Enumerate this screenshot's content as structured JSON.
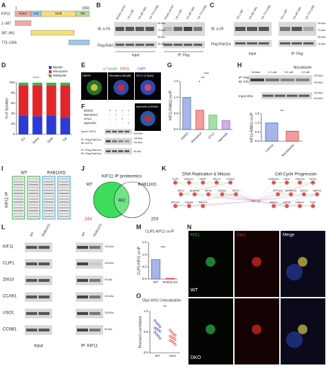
{
  "panel_labels": [
    "A",
    "B",
    "C",
    "D",
    "E",
    "F",
    "G",
    "H",
    "I",
    "J",
    "K",
    "L",
    "M",
    "N",
    "O"
  ],
  "A": {
    "protein": "KIF11",
    "constructs": [
      "1–387",
      "387–861",
      "773–1056"
    ],
    "start": "1",
    "end": "1056",
    "domains": [
      "Motor",
      "Coil",
      "Stalk",
      "Tail"
    ]
  },
  "B": {
    "lanes": [
      "Empty vector",
      "V5-1-387",
      "V5-387-861",
      "V5-773-1056",
      "Empty vector",
      "V5-1-387",
      "V5-387-861",
      "V5-773-1056"
    ],
    "ib": "IB: α-V5",
    "flag": "Flag-Rab11a",
    "input": "Input",
    "ip": "IP: Flag",
    "kda": [
      "95 kDa",
      "72 kDa",
      "55 kDa",
      "26 kDa"
    ]
  },
  "C": {
    "lanes": [
      "V5-1-387",
      "V5-387-861",
      "V5-773-1056",
      "V5-1-387",
      "V5-387-861",
      "V5-773-1056"
    ],
    "ib": "IB: α-V5",
    "flag": "Flag-Rab11a",
    "input": "Input",
    "ip": "IP: Flag",
    "kda": [
      "95 kDa",
      "72 kDa",
      "55 kDa",
      "26 kDa"
    ]
  },
  "E": {
    "stain": [
      "α-Tubulin",
      "KIF11",
      "DAPI"
    ],
    "conditions": [
      "DMSO",
      "Monastrol (50µM)",
      "STLC (2.5µM)",
      "Ispinesib (100nM)"
    ]
  },
  "F": {
    "rows": [
      "DMSO",
      "Monastrol",
      "STLC",
      "Ispinesib"
    ],
    "signs": [
      [
        "+",
        "+",
        "+",
        "+"
      ],
      [
        "-",
        "+",
        "-",
        "-"
      ],
      [
        "-",
        "-",
        "+",
        "-"
      ],
      [
        "-",
        "-",
        "-",
        "+"
      ]
    ],
    "blots": [
      "Input: KIF11",
      "IP: Flag-Rab11a",
      "IB: KIF11",
      "IP: Flag-Rab11a",
      "IB: Flag-Rab11a"
    ],
    "kda": [
      "130 kDa",
      "100 kDa",
      "130 kDa",
      "100 kDa",
      "26 kDa"
    ]
  },
  "H_blot": {
    "treatment": "Nocodazole",
    "doses": [
      "Vehicle",
      "0.1 µM",
      "0.5 µM",
      "1.0 µM"
    ],
    "labels": [
      "IP: Flag-Rab11a",
      "IB: Kif11",
      "Input Kif11"
    ],
    "kda": [
      "130 kDa",
      "100 kDa",
      "130 kDa",
      "100 kDa"
    ]
  },
  "I": {
    "groups": [
      "WT",
      "RAB11KD"
    ],
    "ylabel": "KIF11 IP"
  },
  "J": {
    "title": "KIF11 IP proteomics",
    "sets": [
      "WT",
      "RAB11KD"
    ],
    "only_wt": "244",
    "shared": "482",
    "only_kd": "233"
  },
  "K": {
    "clusters": [
      "DNA Replication & Mitosis",
      "Cell Cycle Progression"
    ],
    "center": "KIF11",
    "left_nodes": [
      "CLIP1",
      "MAD1L1",
      "NASP",
      "HELLS",
      "CCNA1",
      "SMC3",
      "NCAPD2",
      "MLH1",
      "STAG2",
      "RFC2",
      "BRCA2",
      "PDS5A",
      "SMC1A"
    ],
    "right_nodes": [
      "CSNK2A1",
      "USO1",
      "CDK11A",
      "KIF4A",
      "PPP1CA",
      "RPS6KA3",
      "DMXL2",
      "MAPK3",
      "MAPK1",
      "NUP43",
      "GNB2L1",
      "RAN"
    ]
  },
  "L": {
    "groups": [
      "WT",
      "RAB11KO",
      "WT",
      "RAB11KO"
    ],
    "proteins": [
      "KIF11",
      "CLIP1",
      "ZW10",
      "CCAR1",
      "USO1",
      "CCNB1"
    ],
    "kda": [
      "130 kDa",
      "130 kDa",
      "95 kDa",
      "130 kDa",
      "130 kDa",
      "55 kDa"
    ],
    "input": "Input",
    "ip": "IP: KIF11"
  },
  "N": {
    "channels": [
      "Kif11",
      "Clip1",
      "Merge"
    ],
    "rows": [
      "WT",
      "DKO"
    ]
  },
  "chart_data": [
    {
      "type": "stacked",
      "ylabel": "% of Spindles",
      "categories": [
        "EV",
        "Motor",
        "Stalk",
        "Tail"
      ],
      "series": [
        {
          "name": "Bipolar",
          "color": "#2b3bd6",
          "values": [
            37,
            35,
            36,
            33
          ]
        },
        {
          "name": "Monopolar",
          "color": "#e0262a",
          "values": [
            58,
            60,
            58,
            62
          ]
        },
        {
          "name": "Multipolar",
          "color": "#3db34a",
          "values": [
            5,
            5,
            6,
            5
          ]
        }
      ],
      "ylim": [
        0,
        100
      ],
      "yticks": [
        0,
        20,
        40,
        60,
        80,
        100
      ],
      "annotations": [
        "****",
        "*"
      ]
    },
    {
      "type": "bar",
      "ylabel": "KIF11-RAB11 co-IP",
      "categories": [
        "DMSO",
        "Monastrol",
        "STLC",
        "Ispinesib"
      ],
      "values": [
        1.0,
        0.6,
        0.45,
        0.28
      ],
      "colors": [
        "#3c5ec9",
        "#e0262a",
        "#3db34a",
        "#9b4fc4"
      ],
      "ylim": [
        0,
        1.5
      ],
      "yticks": [
        {
          "value": 0,
          "label": "0.0"
        },
        0.5,
        {
          "value": 1,
          "label": "1.0"
        },
        1.5
      ],
      "annotations": [
        "***",
        "**",
        "*"
      ]
    },
    {
      "type": "bar",
      "ylabel": "KIF11-RAB11 co-IP",
      "categories": [
        "Control",
        "Nocodazole"
      ],
      "values": [
        1.0,
        0.55
      ],
      "colors": [
        "#3c5ec9",
        "#e0262a"
      ],
      "ylim": [
        0,
        1.5
      ],
      "yticks": [
        {
          "value": 0,
          "label": "0.0"
        },
        0.5,
        {
          "value": 1,
          "label": "1.0"
        },
        1.5
      ],
      "annotations": [
        "**"
      ]
    },
    {
      "type": "bar",
      "title": "CLIP1-KIF11 co-IP",
      "ylabel": "CLIP1-KIF11 co-IP",
      "categories": [
        "WT",
        "RAB11 KO"
      ],
      "values": [
        0.8,
        0.03
      ],
      "colors": [
        "#3c5ec9",
        "#e0262a"
      ],
      "ylim": [
        0,
        1.5
      ],
      "yticks": [
        {
          "value": 0,
          "label": "0.0"
        },
        0.5,
        {
          "value": 1,
          "label": "1.0"
        },
        1.5
      ],
      "annotations": [
        "***"
      ]
    },
    {
      "type": "strip",
      "title": "Clip1-Kif11 Colocalization",
      "ylabel": "Pearson's correlation",
      "categories": [
        "WT",
        "DKO"
      ],
      "values": [
        [
          0.78,
          0.72,
          0.68,
          0.63,
          0.6,
          0.58,
          0.55,
          0.52,
          0.5,
          0.45,
          0.4,
          0.35
        ],
        [
          0.55,
          0.5,
          0.45,
          0.42,
          0.4,
          0.38,
          0.35,
          0.32,
          0.3,
          0.28,
          0.25,
          0.2
        ]
      ],
      "colors": [
        "#2b3bd6",
        "#e0262a"
      ],
      "ylim": [
        0,
        1
      ],
      "yticks": [
        {
          "value": 0,
          "label": "0.0"
        },
        0.5,
        {
          "value": 1,
          "label": "1.0"
        }
      ],
      "annotations": [
        "**"
      ]
    }
  ]
}
